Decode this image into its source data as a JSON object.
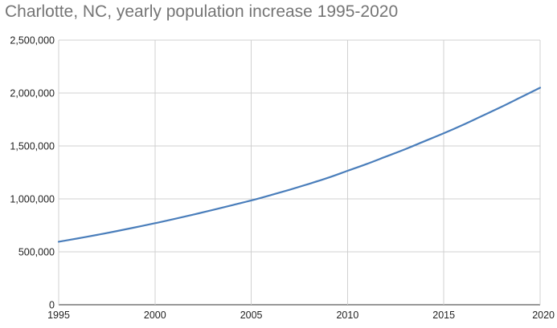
{
  "chart_data": {
    "type": "line",
    "title": "Charlotte, NC, yearly population increase 1995-2020",
    "xlabel": "",
    "ylabel": "",
    "x": [
      1995,
      1996,
      1997,
      1998,
      1999,
      2000,
      2001,
      2002,
      2003,
      2004,
      2005,
      2006,
      2007,
      2008,
      2009,
      2010,
      2011,
      2012,
      2013,
      2014,
      2015,
      2016,
      2017,
      2018,
      2019,
      2020
    ],
    "series": [
      {
        "color": "#4a7ebb",
        "values": [
          595000,
          627000,
          660000,
          695000,
          732000,
          770000,
          810000,
          852000,
          895000,
          940000,
          985000,
          1035000,
          1087000,
          1142000,
          1200000,
          1265000,
          1330000,
          1400000,
          1470000,
          1545000,
          1620000,
          1700000,
          1785000,
          1870000,
          1960000,
          2050000
        ]
      }
    ],
    "xlim": [
      1995,
      2020
    ],
    "ylim": [
      0,
      2500000
    ],
    "x_ticks": [
      1995,
      2000,
      2005,
      2010,
      2015,
      2020
    ],
    "x_tick_labels": [
      "1995",
      "2000",
      "2005",
      "2010",
      "2015",
      "2020"
    ],
    "y_ticks": [
      0,
      500000,
      1000000,
      1500000,
      2000000,
      2500000
    ],
    "y_tick_labels": [
      "0",
      "500,000",
      "1,000,000",
      "1,500,000",
      "2,000,000",
      "2,500,000"
    ],
    "grid": true,
    "legend": "none"
  }
}
